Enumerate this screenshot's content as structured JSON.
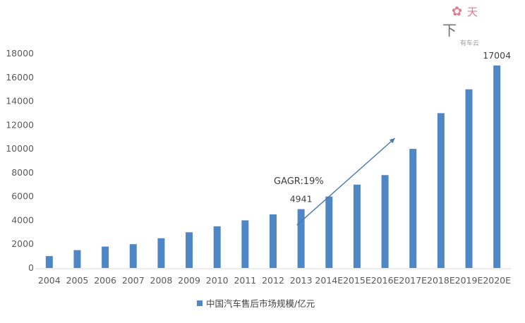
{
  "chart_data": {
    "type": "bar",
    "categories": [
      "2004",
      "2005",
      "2006",
      "2007",
      "2008",
      "2009",
      "2010",
      "2011",
      "2012",
      "2013",
      "2014E",
      "2015E",
      "2016E",
      "2017E",
      "2018E",
      "2019E",
      "2020E"
    ],
    "series": [
      {
        "name": "中国汽车售后市场规模/亿元",
        "values": [
          1000,
          1500,
          1800,
          2000,
          2500,
          3000,
          3500,
          4000,
          4500,
          4941,
          6000,
          7000,
          7800,
          10000,
          13000,
          15000,
          17004
        ]
      }
    ],
    "ylim": [
      0,
      18000
    ],
    "yticks": [
      0,
      2000,
      4000,
      6000,
      8000,
      10000,
      12000,
      14000,
      16000,
      18000
    ],
    "data_labels": [
      {
        "category": "2013",
        "text": "4941"
      },
      {
        "category": "2020E",
        "text": "17004"
      }
    ],
    "annotation": {
      "text": "GAGR:19%",
      "arrow": "upward trend arrow from 2013 toward 2016E"
    },
    "bar_color": "#4f86c6",
    "axis_color": "#d9d9d9",
    "grid": false,
    "legend": "bottom-center"
  },
  "watermark": {
    "text": "有车云"
  }
}
